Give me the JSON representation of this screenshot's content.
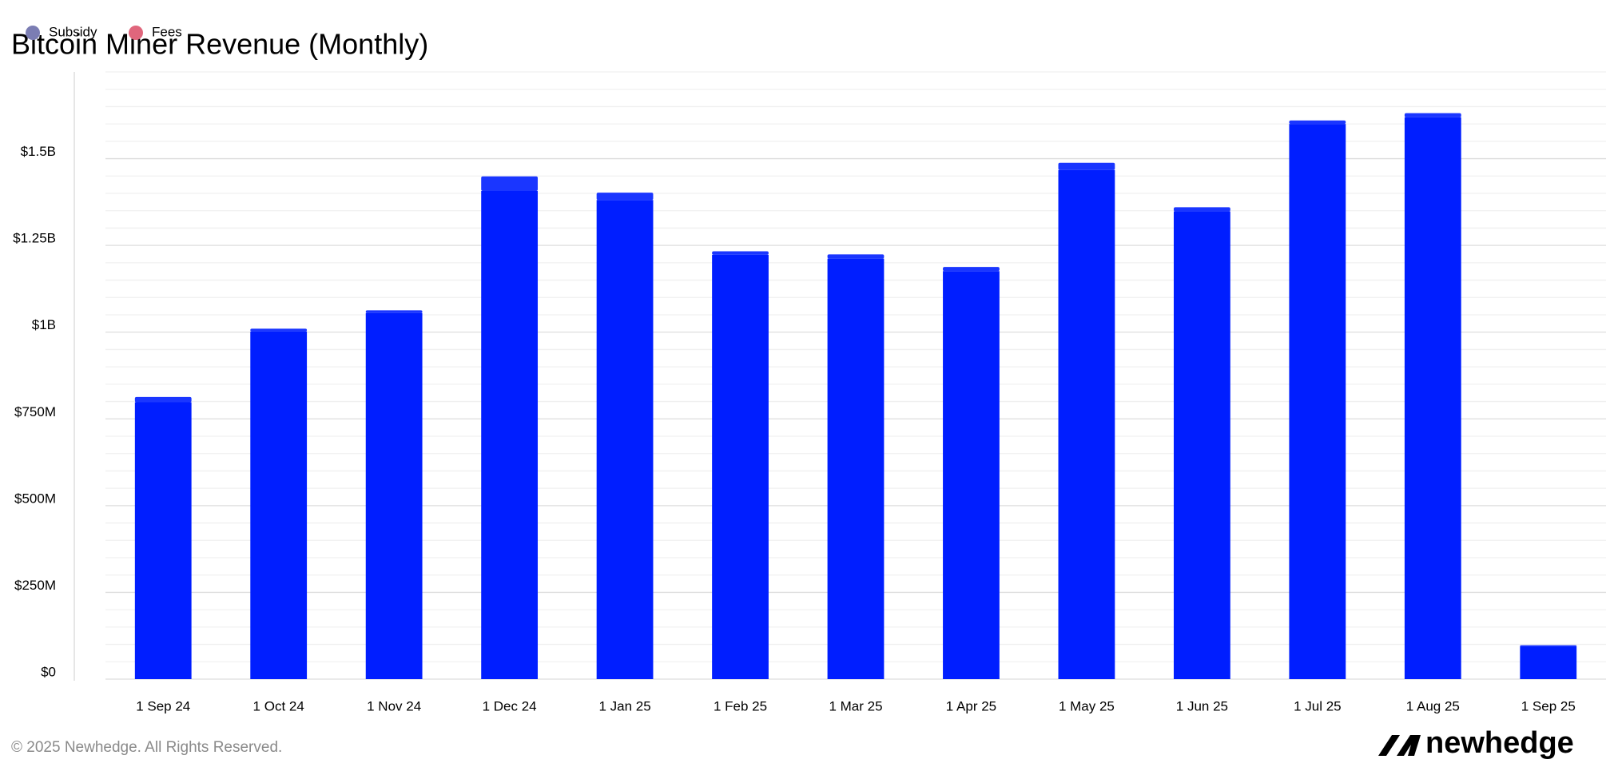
{
  "chart_data": {
    "type": "stacked-bar",
    "title": "Bitcoin Miner Revenue (Monthly)",
    "categories": [
      "1 Sep 24",
      "1 Oct 24",
      "1 Nov 24",
      "1 Dec 24",
      "1 Jan 25",
      "1 Feb 25",
      "1 Mar 25",
      "1 Apr 25",
      "1 May 25",
      "1 Jun 25",
      "1 Jul 25",
      "1 Aug 25",
      "1 Sep 25"
    ],
    "series": [
      {
        "name": "Subsidy",
        "color": "#001eff",
        "legend_color": "#7b7db3",
        "values": [
          798000000,
          1002000000,
          1055000000,
          1407000000,
          1381000000,
          1223000000,
          1212000000,
          1176000000,
          1467000000,
          1348000000,
          1600000000,
          1619000000,
          95000000
        ]
      },
      {
        "name": "Fees",
        "color": "#1a36ff",
        "legend_color": "#e0667c",
        "values": [
          15000000,
          8000000,
          8000000,
          42000000,
          21000000,
          10000000,
          12000000,
          12000000,
          21000000,
          12000000,
          10000000,
          12000000,
          3000000
        ]
      }
    ],
    "ylim": [
      0,
      1750000000
    ],
    "yticks": [
      {
        "value": 0,
        "label": "$0"
      },
      {
        "value": 250000000,
        "label": "$250M"
      },
      {
        "value": 500000000,
        "label": "$500M"
      },
      {
        "value": 750000000,
        "label": "$750M"
      },
      {
        "value": 1000000000,
        "label": "$1B"
      },
      {
        "value": 1250000000,
        "label": "$1.25B"
      },
      {
        "value": 1500000000,
        "label": "$1.5B"
      }
    ],
    "minor_yticks": [
      50000000,
      100000000,
      150000000,
      200000000,
      300000000,
      350000000,
      400000000,
      450000000,
      550000000,
      600000000,
      650000000,
      700000000,
      800000000,
      850000000,
      900000000,
      950000000,
      1050000000,
      1100000000,
      1150000000,
      1200000000,
      1300000000,
      1350000000,
      1400000000,
      1450000000,
      1550000000,
      1600000000,
      1650000000,
      1700000000,
      1750000000
    ],
    "grid": true
  },
  "footer": {
    "copyright": "© 2025 Newhedge. All Rights Reserved.",
    "brand": "newhedge"
  }
}
